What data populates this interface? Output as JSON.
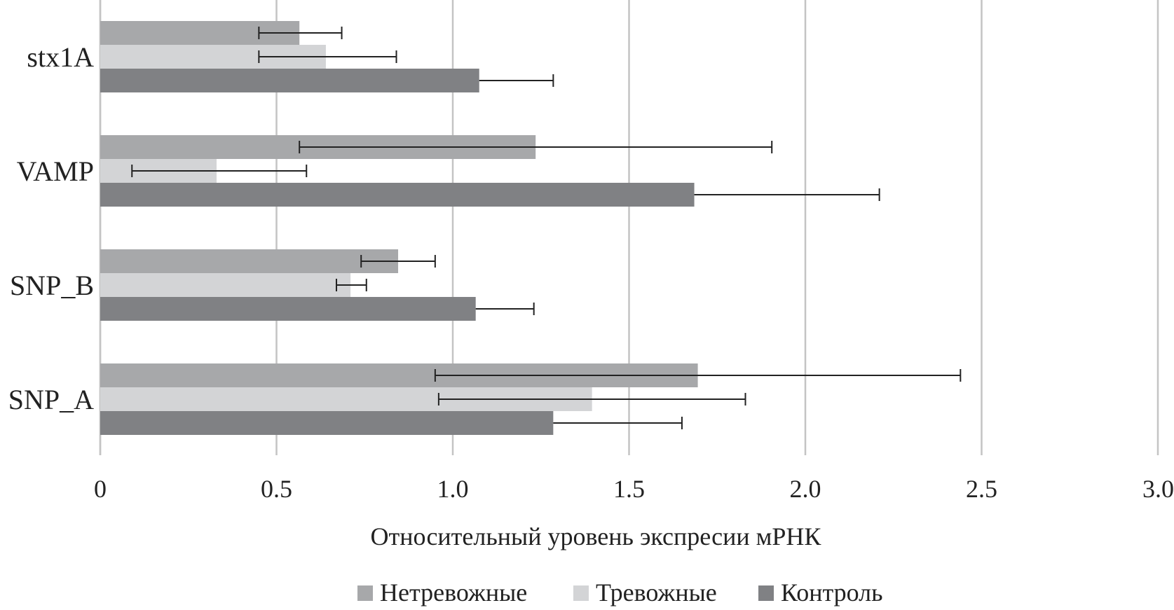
{
  "chart_data": {
    "type": "bar",
    "orientation": "horizontal",
    "categories": [
      "stx1A",
      "VAMP",
      "SNP_B",
      "SNP_A"
    ],
    "series": [
      {
        "name": "Нетревожные",
        "color": "#a7a8aa",
        "values": [
          0.565,
          1.235,
          0.845,
          1.695
        ],
        "err_low": [
          0.45,
          0.565,
          0.74,
          0.95
        ],
        "err_high": [
          0.685,
          1.905,
          0.95,
          2.44
        ]
      },
      {
        "name": "Тревожные",
        "color": "#d3d4d6",
        "values": [
          0.64,
          0.33,
          0.71,
          1.395
        ],
        "err_low": [
          0.45,
          0.09,
          0.67,
          0.96
        ],
        "err_high": [
          0.84,
          0.585,
          0.755,
          1.83
        ]
      },
      {
        "name": "Контроль",
        "color": "#808184",
        "values": [
          1.075,
          1.685,
          1.065,
          1.285
        ],
        "err_low": [
          1.075,
          1.685,
          1.065,
          1.285
        ],
        "err_high": [
          1.285,
          2.21,
          1.23,
          1.65
        ]
      }
    ],
    "xticks": [
      "0",
      "0.5",
      "1.0",
      "1.5",
      "2.0",
      "2.5",
      "3.0"
    ],
    "xlim": [
      0,
      3.0
    ],
    "xlabel": "Относительный уровень экспресии мРНК",
    "grid": true,
    "legend_position": "bottom"
  }
}
